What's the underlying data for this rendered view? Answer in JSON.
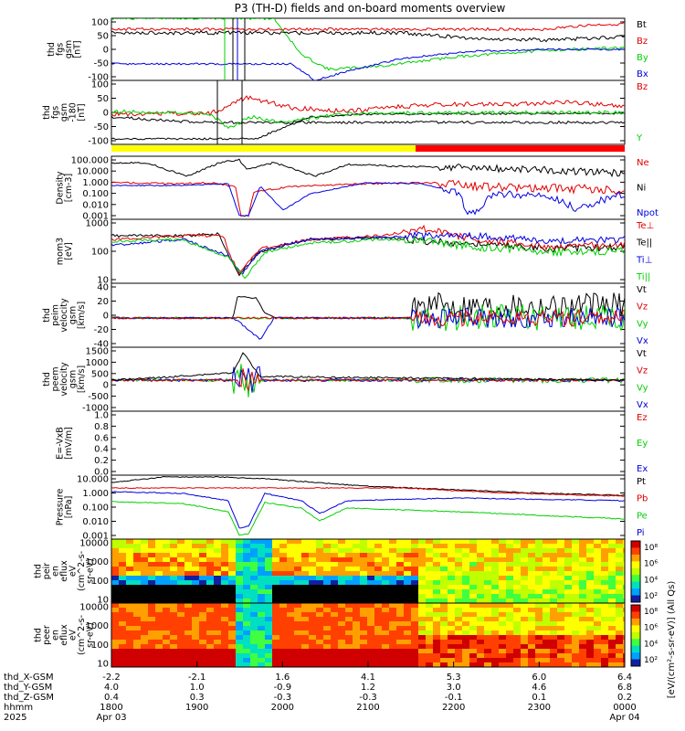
{
  "title": "P3 (TH-D) fields and on-board moments overview",
  "colors": {
    "black": "#000000",
    "red": "#e00000",
    "green": "#00d000",
    "blue": "#0000e0",
    "yellow": "#ffff00",
    "barRed": "#ff0000"
  },
  "chart_data": [
    {
      "id": "fgs_gsm",
      "type": "line",
      "ylabel": [
        "thd",
        "fgs",
        "gsm",
        "[nT]"
      ],
      "yticks": [
        "100",
        "50",
        "0",
        "-50",
        "-100"
      ],
      "ylim": [
        -100,
        100
      ],
      "legend": [
        {
          "name": "Bt",
          "color": "black"
        },
        {
          "name": "Bz",
          "color": "red"
        },
        {
          "name": "By",
          "color": "green"
        },
        {
          "name": "Bx",
          "color": "blue"
        }
      ]
    },
    {
      "id": "fgs_gsm_dsl",
      "type": "line",
      "ylabel": [
        "thd",
        "fgs",
        "gsm",
        "-180",
        "[nT]"
      ],
      "yticks": [
        "100",
        "50",
        "0",
        "-50",
        "-100"
      ],
      "ylim": [
        -120,
        120
      ],
      "legend": [
        {
          "name": "Bz",
          "color": "red"
        },
        {
          "name": "Y",
          "color": "green"
        }
      ]
    },
    {
      "id": "density",
      "type": "line",
      "ylabel": [
        "Density",
        "[cm-3]"
      ],
      "yticks": [
        "100.000",
        "10.000",
        "1.000",
        "0.100",
        "0.010",
        "0.001"
      ],
      "scale": "log",
      "legend": [
        {
          "name": "Ne",
          "color": "red"
        },
        {
          "name": "Ni",
          "color": "black"
        },
        {
          "name": "Npot",
          "color": "blue"
        }
      ]
    },
    {
      "id": "temperature",
      "type": "line",
      "ylabel": [
        "mom3",
        "[eV]"
      ],
      "yticks": [
        "1000",
        "100",
        "10"
      ],
      "scale": "log",
      "legend": [
        {
          "name": "Te⊥",
          "color": "red"
        },
        {
          "name": "Te||",
          "color": "black"
        },
        {
          "name": "Ti⊥",
          "color": "blue"
        },
        {
          "name": "Ti||",
          "color": "green"
        }
      ]
    },
    {
      "id": "peim_velocity",
      "type": "line",
      "ylabel": [
        "thd",
        "peim",
        "velocity",
        "gsm",
        "[km/s]"
      ],
      "yticks": [
        "40",
        "20",
        "0",
        "-20",
        "-40"
      ],
      "ylim": [
        -40,
        40
      ],
      "legend": [
        {
          "name": "Vt",
          "color": "black"
        },
        {
          "name": "Vz",
          "color": "red"
        },
        {
          "name": "Vy",
          "color": "green"
        },
        {
          "name": "Vx",
          "color": "blue"
        }
      ]
    },
    {
      "id": "peem_velocity",
      "type": "line",
      "ylabel": [
        "thd",
        "peem",
        "velocity",
        "gsm",
        "[km/s]"
      ],
      "yticks": [
        "1500",
        "1000",
        "500",
        "0",
        "-500",
        "-1000"
      ],
      "ylim": [
        -1200,
        1600
      ],
      "legend": [
        {
          "name": "Vt",
          "color": "black"
        },
        {
          "name": "Vz",
          "color": "red"
        },
        {
          "name": "Vy",
          "color": "green"
        },
        {
          "name": "Vx",
          "color": "blue"
        }
      ]
    },
    {
      "id": "efield",
      "type": "line",
      "ylabel": [
        "E=-VxB",
        "[mV/m]"
      ],
      "yticks": [
        "1.0",
        "0.8",
        "0.6",
        "0.4",
        "0.2",
        "0.0"
      ],
      "ylim": [
        0,
        1
      ],
      "legend": [
        {
          "name": "Ez",
          "color": "red"
        },
        {
          "name": "Ey",
          "color": "green"
        },
        {
          "name": "Ex",
          "color": "blue"
        }
      ]
    },
    {
      "id": "pressure",
      "type": "line",
      "ylabel": [
        "Pressure",
        "[nPa]"
      ],
      "yticks": [
        "10.000",
        "1.000",
        "0.100",
        "0.010",
        "0.001"
      ],
      "scale": "log",
      "legend": [
        {
          "name": "Pt",
          "color": "black"
        },
        {
          "name": "Pb",
          "color": "red"
        },
        {
          "name": "Pe",
          "color": "green"
        },
        {
          "name": "Pi",
          "color": "blue"
        }
      ]
    },
    {
      "id": "peir_eflux",
      "type": "heatmap",
      "ylabel": [
        "thd",
        "peir",
        "en",
        "eflux",
        "eV",
        "(cm^2-s-",
        "sr-eV)"
      ],
      "yticks": [
        "10000",
        "1000",
        "100",
        "10"
      ],
      "scale": "log"
    },
    {
      "id": "peer_eflux",
      "type": "heatmap",
      "ylabel": [
        "thd",
        "peer",
        "en",
        "eflux",
        "eV",
        "(cm^2-s-",
        "sr-eV)"
      ],
      "yticks": [
        "10000",
        "1000",
        "100",
        "10"
      ],
      "scale": "log"
    }
  ],
  "colorbar": {
    "label": "[eV/(cm²-s-sr-eV)] (All Qs)",
    "ticks": [
      "10⁸",
      "10⁶",
      "10⁴",
      "10²"
    ]
  },
  "xaxis": {
    "rows": [
      {
        "label": "thd_X-GSM",
        "values": [
          "-2.2",
          "-2.1",
          "1.6",
          "4.1",
          "5.3",
          "6.0",
          "6.4"
        ]
      },
      {
        "label": "thd_Y-GSM",
        "values": [
          "4.0",
          "1.0",
          "-0.9",
          "1.2",
          "3.0",
          "4.6",
          "6.8"
        ]
      },
      {
        "label": "thd_Z-GSM",
        "values": [
          "0.4",
          "0.3",
          "-0.3",
          "-0.3",
          "-0.1",
          "0.1",
          "0.2"
        ]
      },
      {
        "label": "hhmm",
        "values": [
          "1800",
          "1900",
          "2000",
          "2100",
          "2200",
          "2300",
          "0000"
        ]
      },
      {
        "label": "2025",
        "values": [
          "Apr 03",
          "",
          "",
          "",
          "",
          "",
          "Apr 04"
        ]
      }
    ]
  }
}
